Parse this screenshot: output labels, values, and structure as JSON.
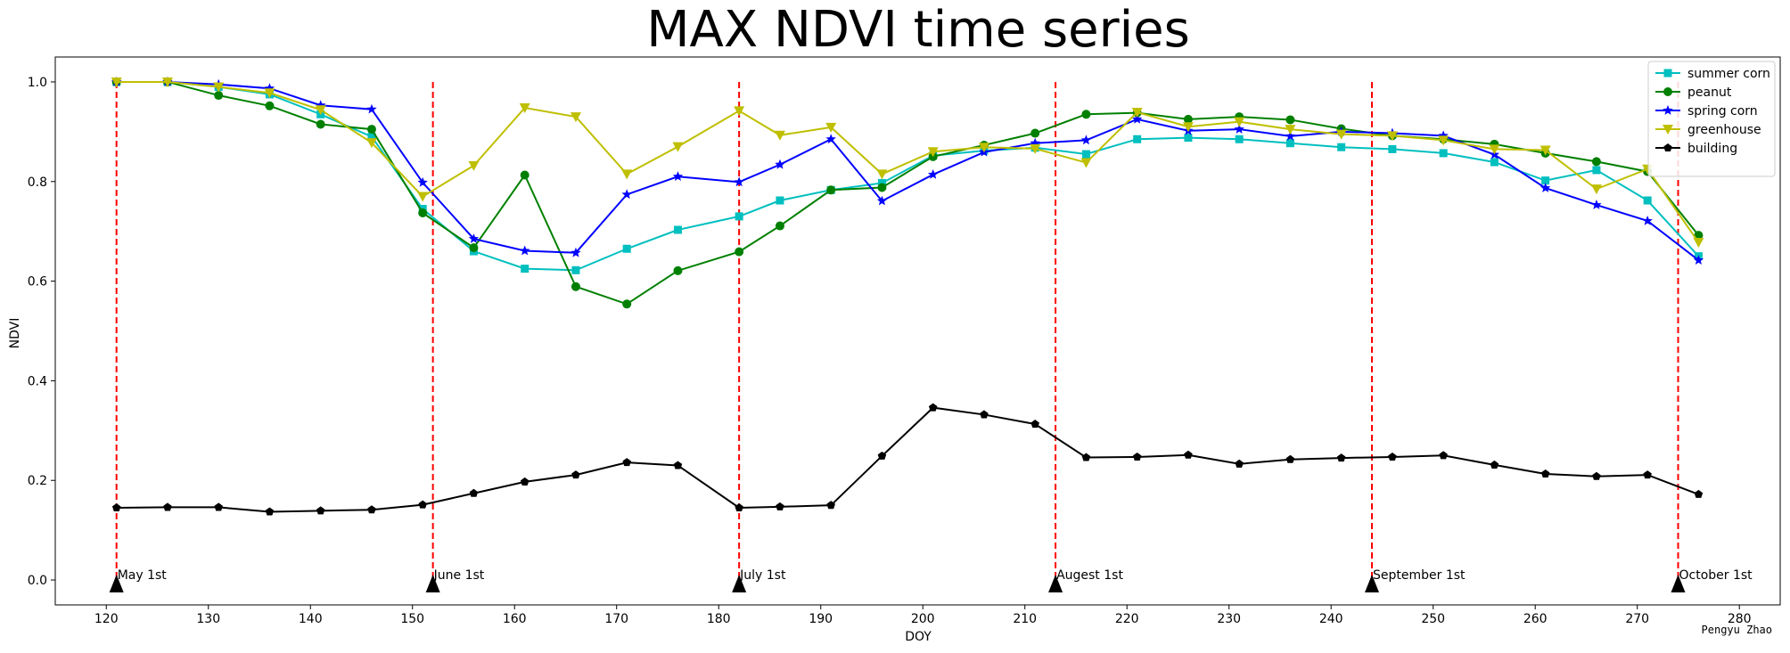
{
  "chart_data": {
    "type": "line",
    "title": "MAX NDVI time series",
    "xlabel": "DOY",
    "ylabel": "NDVI",
    "xlim": [
      115,
      284
    ],
    "ylim": [
      -0.05,
      1.05
    ],
    "xticks": [
      120,
      130,
      140,
      150,
      160,
      170,
      180,
      190,
      200,
      210,
      220,
      230,
      240,
      250,
      260,
      270,
      280
    ],
    "yticks": [
      0.0,
      0.2,
      0.4,
      0.6,
      0.8,
      1.0
    ],
    "grid": false,
    "legend_position": "top-right",
    "x": [
      121,
      126,
      131,
      136,
      141,
      146,
      151,
      156,
      161,
      166,
      171,
      176,
      182,
      186,
      191,
      196,
      201,
      206,
      211,
      216,
      221,
      226,
      231,
      236,
      241,
      246,
      251,
      256,
      261,
      266,
      271,
      276
    ],
    "series": [
      {
        "name": "summer corn",
        "color": "#00bfbf",
        "marker": "square",
        "values": [
          1.0,
          1.0,
          0.99,
          0.975,
          0.935,
          0.89,
          0.745,
          0.66,
          0.625,
          0.622,
          0.665,
          0.703,
          0.73,
          0.762,
          0.783,
          0.797,
          0.852,
          0.862,
          0.868,
          0.855,
          0.885,
          0.888,
          0.885,
          0.877,
          0.869,
          0.865,
          0.857,
          0.839,
          0.802,
          0.823,
          0.762,
          0.65
        ]
      },
      {
        "name": "peanut",
        "color": "#008000",
        "marker": "circle",
        "values": [
          1.0,
          1.0,
          0.973,
          0.952,
          0.915,
          0.905,
          0.737,
          0.667,
          0.813,
          0.589,
          0.554,
          0.621,
          0.659,
          0.711,
          0.783,
          0.788,
          0.85,
          0.873,
          0.897,
          0.935,
          0.938,
          0.925,
          0.93,
          0.924,
          0.906,
          0.892,
          0.885,
          0.875,
          0.857,
          0.84,
          0.82,
          0.692
        ]
      },
      {
        "name": "spring corn",
        "color": "#0000ff",
        "marker": "star",
        "values": [
          1.0,
          1.0,
          0.995,
          0.987,
          0.953,
          0.945,
          0.798,
          0.685,
          0.661,
          0.657,
          0.774,
          0.81,
          0.799,
          0.834,
          0.885,
          0.761,
          0.814,
          0.859,
          0.877,
          0.883,
          0.925,
          0.902,
          0.905,
          0.891,
          0.9,
          0.897,
          0.892,
          0.854,
          0.787,
          0.753,
          0.721,
          0.642
        ]
      },
      {
        "name": "greenhouse",
        "color": "#bfbf00",
        "marker": "triangle-down",
        "values": [
          1.0,
          1.0,
          0.99,
          0.978,
          0.944,
          0.878,
          0.77,
          0.832,
          0.948,
          0.93,
          0.815,
          0.87,
          0.942,
          0.893,
          0.909,
          0.815,
          0.86,
          0.869,
          0.866,
          0.838,
          0.939,
          0.91,
          0.92,
          0.905,
          0.895,
          0.892,
          0.883,
          0.865,
          0.863,
          0.785,
          0.825,
          0.678
        ]
      },
      {
        "name": "building",
        "color": "#000000",
        "marker": "pentagon",
        "values": [
          0.145,
          0.146,
          0.146,
          0.137,
          0.139,
          0.141,
          0.151,
          0.174,
          0.197,
          0.211,
          0.236,
          0.23,
          0.145,
          0.147,
          0.15,
          0.249,
          0.346,
          0.332,
          0.313,
          0.246,
          0.247,
          0.251,
          0.233,
          0.242,
          0.245,
          0.247,
          0.25,
          0.231,
          0.213,
          0.208,
          0.211,
          0.172
        ]
      }
    ],
    "vlines": {
      "color": "#ff0000",
      "style": "dashed",
      "ymin": 0.0,
      "ymax": 1.0,
      "items": [
        {
          "x": 121,
          "label": "May 1st"
        },
        {
          "x": 152,
          "label": "June 1st"
        },
        {
          "x": 182,
          "label": "July 1st"
        },
        {
          "x": 213,
          "label": "Augest 1st"
        },
        {
          "x": 244,
          "label": "September 1st"
        },
        {
          "x": 274,
          "label": "October 1st"
        }
      ]
    },
    "credit": "Pengyu Zhao"
  }
}
